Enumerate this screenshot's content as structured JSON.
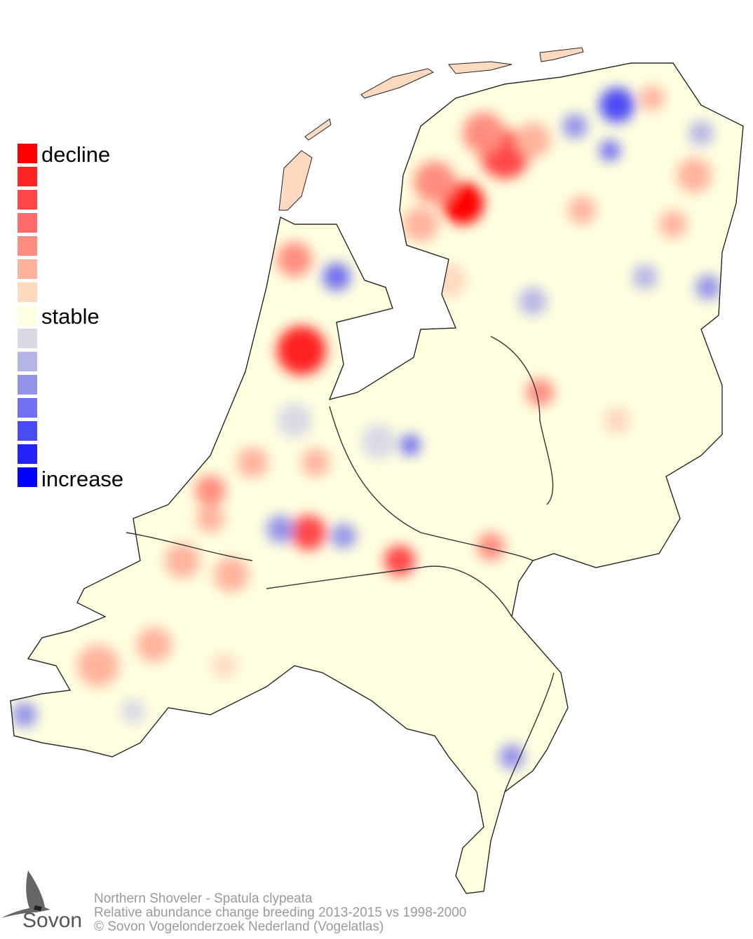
{
  "legend": {
    "labels": {
      "top": "decline",
      "middle": "stable",
      "bottom": "increase"
    },
    "colors": [
      "#ff0000",
      "#ff2323",
      "#ff4646",
      "#ff6a6a",
      "#ff8d7f",
      "#ffb39c",
      "#ffd9c0",
      "#ffffe0",
      "#d9d9e6",
      "#b6b6e6",
      "#9393ea",
      "#7070f0",
      "#4b4bf5",
      "#2424fa",
      "#0000ff"
    ]
  },
  "footer": {
    "line1": "Northern Shoveler - Spatula clypeata",
    "line2": "Relative abundance change breeding 2013-2015 vs 1998-2000",
    "line3": "© Sovon Vogelonderzoek Nederland (Vogelatlas)"
  },
  "logo": {
    "text": "Sovon",
    "icon": "swallow-icon"
  }
}
